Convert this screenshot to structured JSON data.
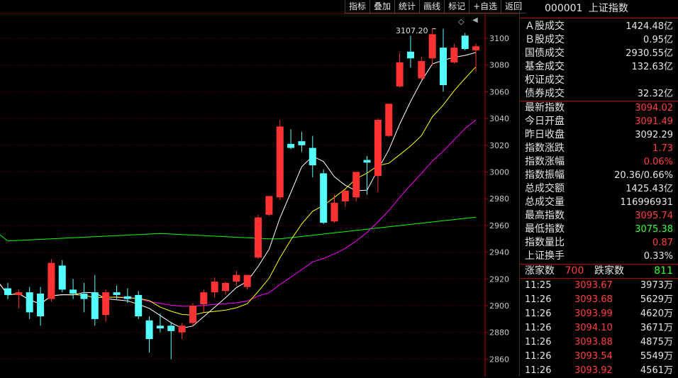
{
  "toolbar": [
    "指标",
    "叠加",
    "统计",
    "画线",
    "标记",
    "+自选",
    "返回"
  ],
  "panel": {
    "code": "000001",
    "name": "上证指数",
    "turnover": [
      {
        "label": "Ａ股成交",
        "value": "1424.48亿",
        "color": "white"
      },
      {
        "label": "Ｂ股成交",
        "value": "0.95亿",
        "color": "white"
      },
      {
        "label": "国债成交",
        "value": "2930.55亿",
        "color": "white"
      },
      {
        "label": "基金成交",
        "value": "132.63亿",
        "color": "white"
      },
      {
        "label": "权证成交",
        "value": "",
        "color": "white"
      },
      {
        "label": "债券成交",
        "value": "32.32亿",
        "color": "white"
      }
    ],
    "quote": [
      {
        "label": "最新指数",
        "value": "3094.02",
        "color": "red"
      },
      {
        "label": "今日开盘",
        "value": "3091.49",
        "color": "red"
      },
      {
        "label": "昨日收盘",
        "value": "3092.29",
        "color": "white"
      },
      {
        "label": "指数涨跌",
        "value": "1.73",
        "color": "red"
      },
      {
        "label": "指数涨幅",
        "value": "0.06%",
        "color": "red"
      },
      {
        "label": "指数振幅",
        "value": "20.36/0.66%",
        "color": "white"
      },
      {
        "label": "总成交额",
        "value": "1425.43亿",
        "color": "white"
      },
      {
        "label": "总成交量",
        "value": "116996931",
        "color": "white"
      },
      {
        "label": "最高指数",
        "value": "3095.74",
        "color": "red"
      },
      {
        "label": "最低指数",
        "value": "3075.38",
        "color": "green"
      },
      {
        "label": "指数量比",
        "value": "0.87",
        "color": "red"
      },
      {
        "label": "上证换手",
        "value": "0.33%",
        "color": "white"
      }
    ],
    "updown": {
      "up_label": "涨家数",
      "up_value": "700",
      "down_label": "跌家数",
      "down_value": "811"
    },
    "ticks": [
      {
        "time": "11:25",
        "price": "3093.67",
        "vol": "3973万"
      },
      {
        "time": "11:26",
        "price": "3093.68",
        "vol": "5629万"
      },
      {
        "time": "11:26",
        "price": "3093.99",
        "vol": "4620万"
      },
      {
        "time": "11:26",
        "price": "3094.10",
        "vol": "3671万"
      },
      {
        "time": "11:26",
        "price": "3093.88",
        "vol": "4875万"
      },
      {
        "time": "11:26",
        "price": "3093.54",
        "vol": "5549万"
      },
      {
        "time": "11:26",
        "price": "3093.92",
        "vol": "4561万"
      }
    ]
  },
  "chart_data": {
    "type": "candlestick",
    "high_marker": "3107.20",
    "y_ticks": [
      3100,
      3080,
      3060,
      3040,
      3020,
      3000,
      2980,
      2960,
      2940,
      2920,
      2900,
      2880,
      2860
    ],
    "ylim": [
      2853,
      3112
    ],
    "colors": {
      "up": "#ff3333",
      "down": "#54ffff",
      "ma5": "#ffffff",
      "ma10": "#ffff00",
      "ma20": "#ff00ff",
      "ma60": "#00ff00"
    },
    "candles": [
      [
        2913,
        2917,
        2905,
        2908
      ],
      [
        2908,
        2912,
        2898,
        2910
      ],
      [
        2910,
        2914,
        2890,
        2895
      ],
      [
        2909,
        2914,
        2885,
        2892
      ],
      [
        2905,
        2935,
        2903,
        2932
      ],
      [
        2930,
        2934,
        2910,
        2912
      ],
      [
        2912,
        2920,
        2905,
        2909
      ],
      [
        2909,
        2917,
        2895,
        2905
      ],
      [
        2910,
        2923,
        2885,
        2890
      ],
      [
        2893,
        2912,
        2888,
        2910
      ],
      [
        2910,
        2915,
        2905,
        2908
      ],
      [
        2907,
        2913,
        2902,
        2905
      ],
      [
        2908,
        2911,
        2890,
        2892
      ],
      [
        2889,
        2892,
        2865,
        2875
      ],
      [
        2885,
        2894,
        2880,
        2883
      ],
      [
        2885,
        2888,
        2860,
        2881
      ],
      [
        2880,
        2887,
        2875,
        2885
      ],
      [
        2887,
        2902,
        2885,
        2900
      ],
      [
        2901,
        2912,
        2895,
        2910
      ],
      [
        2910,
        2921,
        2906,
        2918
      ],
      [
        2911,
        2918,
        2908,
        2917
      ],
      [
        2918,
        2926,
        2915,
        2923
      ],
      [
        2914,
        2923,
        2912,
        2923
      ],
      [
        2936,
        2968,
        2935,
        2966
      ],
      [
        2968,
        2982,
        2967,
        2982
      ],
      [
        2981,
        3039,
        2979,
        3034
      ],
      [
        3021,
        3032,
        3017,
        3018
      ],
      [
        3023,
        3030,
        3015,
        3020
      ],
      [
        3018,
        3027,
        2996,
        3005
      ],
      [
        2999,
        3002,
        2961,
        2962
      ],
      [
        2963,
        2983,
        2962,
        2977
      ],
      [
        2978,
        2987,
        2974,
        2986
      ],
      [
        2981,
        3000,
        2978,
        3000
      ],
      [
        3009,
        3012,
        2983,
        3007
      ],
      [
        2997,
        3040,
        2985,
        3039
      ],
      [
        3027,
        3051,
        3026,
        3051
      ],
      [
        3064,
        3089,
        3063,
        3082
      ],
      [
        3090,
        3102,
        3078,
        3085
      ],
      [
        3070,
        3086,
        3069,
        3083
      ],
      [
        3085,
        3107.2,
        3080,
        3103
      ],
      [
        3093,
        3107.2,
        3060,
        3065
      ],
      [
        3082,
        3096,
        3081,
        3093
      ],
      [
        3102,
        3104,
        3091,
        3092
      ],
      [
        3091,
        3096,
        3075,
        3094
      ]
    ]
  }
}
